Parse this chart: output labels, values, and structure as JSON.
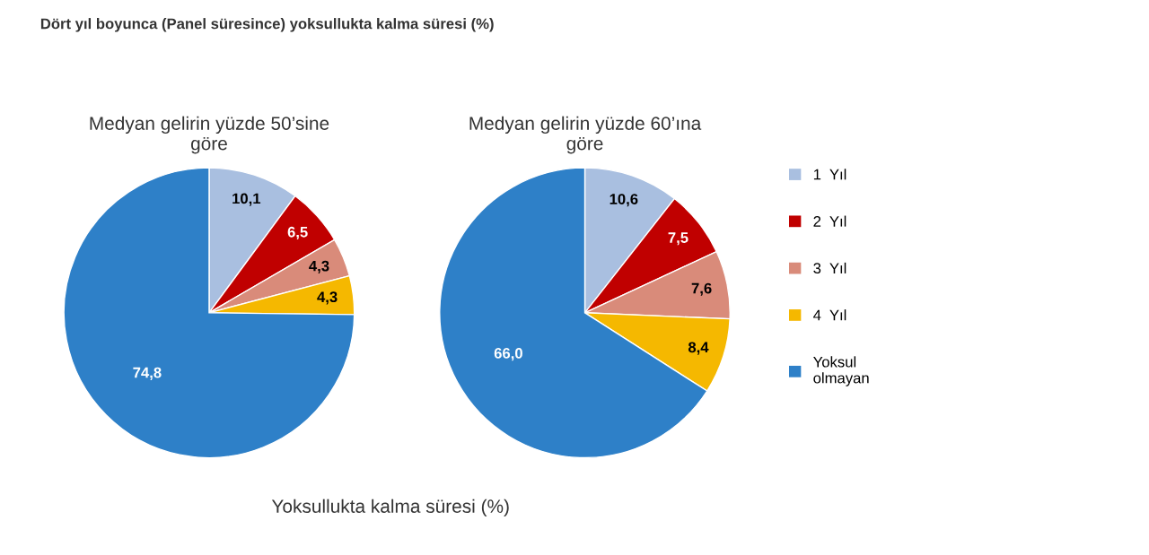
{
  "chart_data": [
    {
      "type": "pie",
      "title": "Medyan gelirin yüzde 50’sine\ngöre",
      "categories": [
        "1  Yıl",
        "2  Yıl",
        "3  Yıl",
        "4  Yıl",
        "Yoksul\nolmayan"
      ],
      "values": [
        10.1,
        6.5,
        4.3,
        4.3,
        74.8
      ],
      "value_labels": [
        "10,1",
        "6,5",
        "4,3",
        "4,3",
        "74,8"
      ],
      "colors": [
        "#a9bfe0",
        "#c00000",
        "#d98b7a",
        "#f5b800",
        "#2e80c8"
      ],
      "legend": "right",
      "annotations": [
        "Dört yıl boyunca (Panel süresince) yoksullukta kalma süresi (%)",
        "Yoksullukta kalma süresi (%)"
      ]
    },
    {
      "type": "pie",
      "title": "Medyan gelirin yüzde 60’ına\ngöre",
      "categories": [
        null,
        null,
        null,
        null,
        null
      ],
      "values": [
        10.6,
        7.5,
        7.6,
        8.4,
        66.0
      ],
      "value_labels": [
        "10,6",
        "7,5",
        "7,6",
        "8,4",
        "66,0"
      ],
      "colors": [
        "#a9bfe0",
        "#c00000",
        "#d98b7a",
        "#f5b800",
        "#2e80c8"
      ],
      "legend": false
    }
  ]
}
